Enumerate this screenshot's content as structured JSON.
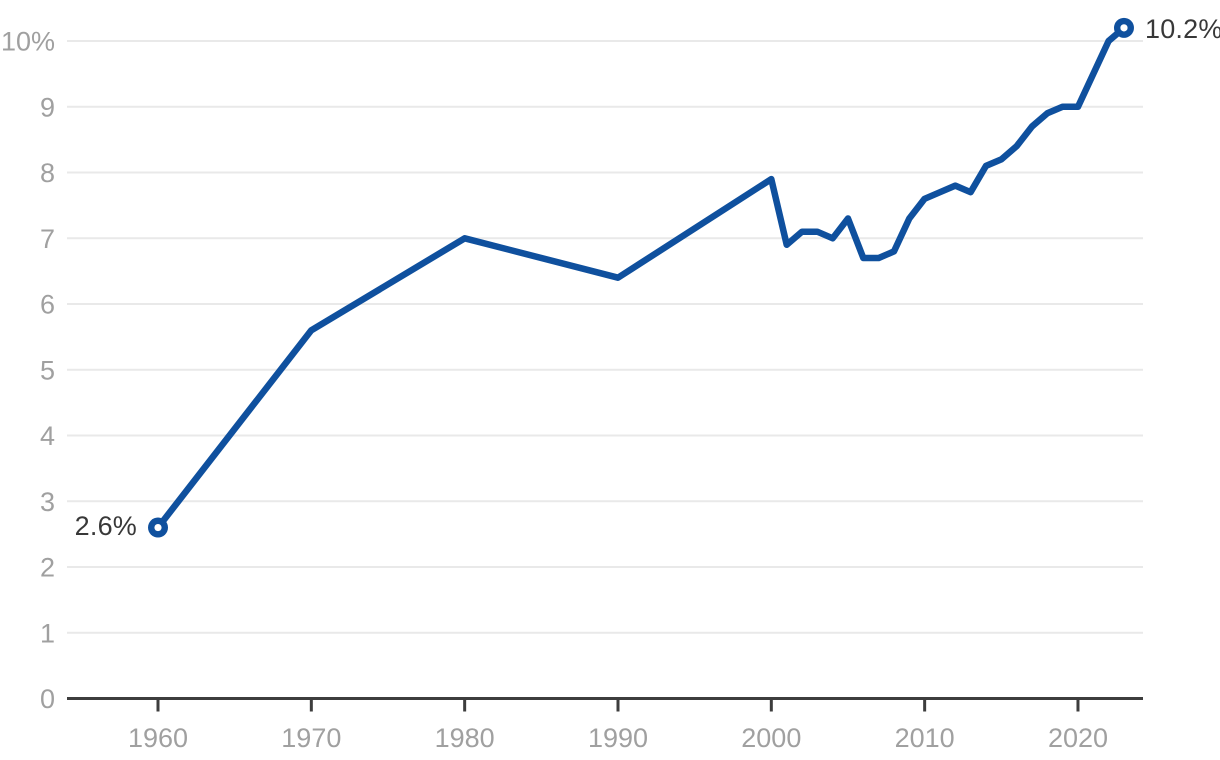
{
  "chart_data": {
    "type": "line",
    "title": "",
    "xlabel": "",
    "ylabel": "",
    "series": [
      {
        "name": "percent",
        "x": [
          1960,
          1970,
          1980,
          1990,
          2000,
          2001,
          2002,
          2003,
          2004,
          2005,
          2006,
          2007,
          2008,
          2009,
          2010,
          2011,
          2012,
          2013,
          2014,
          2015,
          2016,
          2017,
          2018,
          2019,
          2020,
          2021,
          2022,
          2023
        ],
        "values": [
          2.6,
          5.6,
          7.0,
          6.4,
          7.9,
          6.9,
          7.1,
          7.1,
          7.0,
          7.3,
          6.7,
          6.7,
          6.8,
          7.3,
          7.6,
          7.7,
          7.8,
          7.7,
          8.1,
          8.2,
          8.4,
          8.7,
          8.9,
          9.0,
          9.0,
          9.5,
          10.0,
          10.2
        ]
      }
    ],
    "x_ticks": [
      1960,
      1970,
      1980,
      1990,
      2000,
      2010,
      2020
    ],
    "y_ticks": [
      0,
      1,
      2,
      3,
      4,
      5,
      6,
      7,
      8,
      9,
      10
    ],
    "y_tick_labels": [
      "0",
      "1",
      "2",
      "3",
      "4",
      "5",
      "6",
      "7",
      "8",
      "9",
      "10%"
    ],
    "xlim": [
      1954,
      2024.3
    ],
    "ylim": [
      0,
      10.6
    ],
    "grid": "horizontal-only",
    "legend": "none",
    "endpoint_markers": true,
    "annotations": [
      {
        "text": "2.6%",
        "x": 1960,
        "y": 2.6,
        "side": "left"
      },
      {
        "text": "10.2%",
        "x": 2023,
        "y": 10.2,
        "side": "right"
      }
    ]
  },
  "colors": {
    "line": "#0f509e",
    "marker_fill": "#0f509e",
    "marker_hole": "#ffffff",
    "axis": "#3d3d3d",
    "tick_label": "#a0a0a0",
    "gridline": "#e9e9e9",
    "annotation_text": "#383838",
    "background": "#ffffff"
  }
}
